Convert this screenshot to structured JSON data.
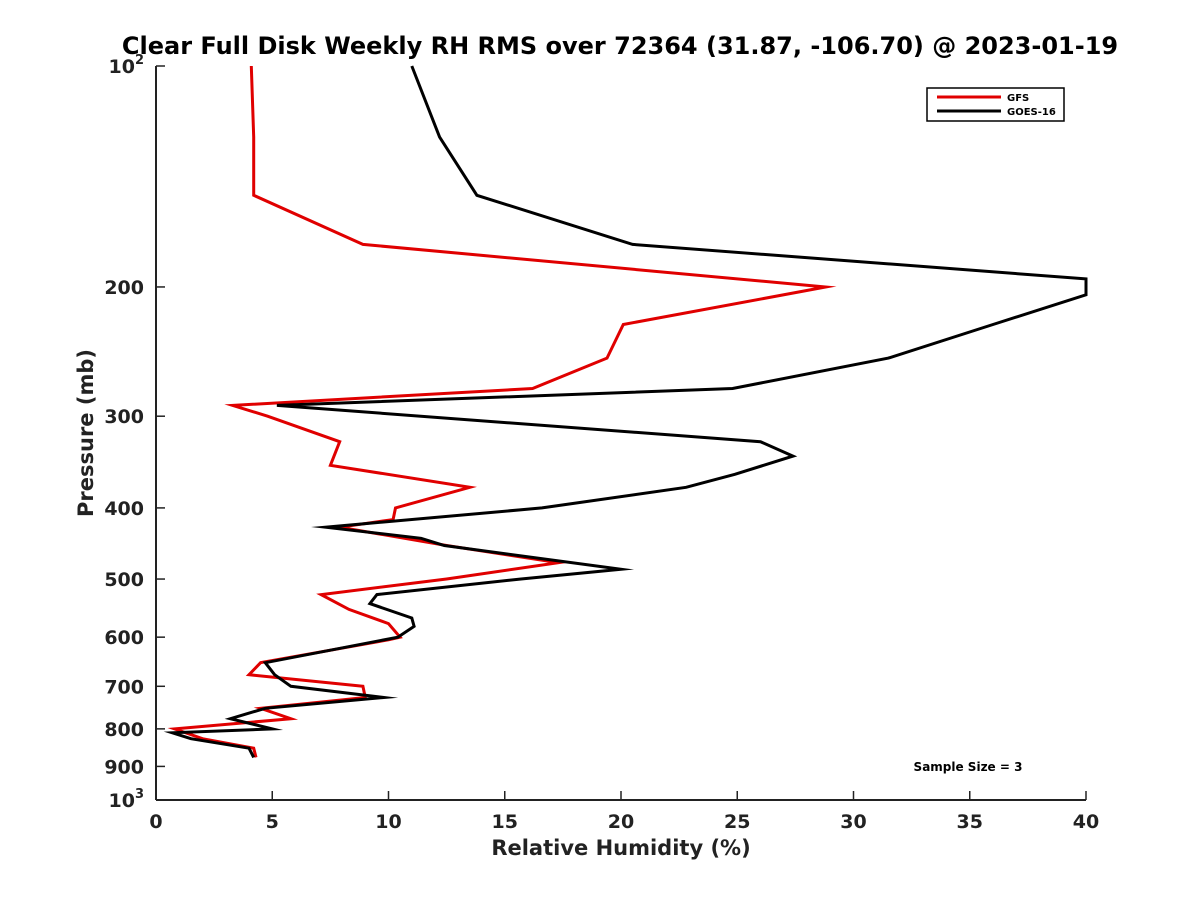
{
  "chart_data": {
    "type": "line",
    "title": "Clear Full Disk Weekly RH RMS over 72364 (31.87, -106.70) @ 2023-01-19",
    "xlabel": "Relative Humidity (%)",
    "ylabel": "Pressure (mb)",
    "xlim": [
      0,
      40
    ],
    "ylim": [
      100,
      1000
    ],
    "y_scale": "log",
    "y_reversed": true,
    "grid": false,
    "legend_position": "top-right",
    "x_ticks": [
      "0",
      "5",
      "10",
      "15",
      "20",
      "25",
      "30",
      "35",
      "40"
    ],
    "y_ticks": [
      {
        "value": 100,
        "label": "10",
        "sup": "2"
      },
      {
        "value": 200,
        "label": "200",
        "sup": ""
      },
      {
        "value": 300,
        "label": "300",
        "sup": ""
      },
      {
        "value": 400,
        "label": "400",
        "sup": ""
      },
      {
        "value": 500,
        "label": "500",
        "sup": ""
      },
      {
        "value": 600,
        "label": "600",
        "sup": ""
      },
      {
        "value": 700,
        "label": "700",
        "sup": ""
      },
      {
        "value": 800,
        "label": "800",
        "sup": ""
      },
      {
        "value": 900,
        "label": "900",
        "sup": ""
      },
      {
        "value": 1000,
        "label": "10",
        "sup": "3"
      }
    ],
    "annotation": "Sample Size = 3",
    "series": [
      {
        "name": "GFS",
        "color": "#e00000",
        "points": [
          [
            4.1,
            100
          ],
          [
            4.2,
            125
          ],
          [
            4.2,
            150
          ],
          [
            8.9,
            175
          ],
          [
            28.8,
            200
          ],
          [
            20.1,
            225
          ],
          [
            19.4,
            250
          ],
          [
            16.2,
            275
          ],
          [
            3.3,
            290
          ],
          [
            4.8,
            300
          ],
          [
            7.9,
            325
          ],
          [
            7.5,
            350
          ],
          [
            13.5,
            375
          ],
          [
            10.3,
            400
          ],
          [
            10.2,
            415
          ],
          [
            7.9,
            425
          ],
          [
            12.5,
            450
          ],
          [
            17.3,
            475
          ],
          [
            12.5,
            500
          ],
          [
            7.1,
            525
          ],
          [
            8.3,
            550
          ],
          [
            10.0,
            575
          ],
          [
            10.5,
            600
          ],
          [
            10.0,
            605
          ],
          [
            4.5,
            650
          ],
          [
            4.0,
            675
          ],
          [
            8.9,
            700
          ],
          [
            9.0,
            725
          ],
          [
            4.5,
            750
          ],
          [
            5.8,
            775
          ],
          [
            0.8,
            800
          ],
          [
            2.0,
            825
          ],
          [
            4.2,
            850
          ],
          [
            4.3,
            875
          ]
        ]
      },
      {
        "name": "GOES-16",
        "color": "#000000",
        "points": [
          [
            11.0,
            100
          ],
          [
            12.2,
            125
          ],
          [
            13.8,
            150
          ],
          [
            20.5,
            175
          ],
          [
            40.0,
            195
          ],
          [
            40.0,
            205
          ],
          [
            36.0,
            225
          ],
          [
            31.5,
            250
          ],
          [
            24.8,
            275
          ],
          [
            5.2,
            290
          ],
          [
            26.0,
            325
          ],
          [
            27.4,
            340
          ],
          [
            24.9,
            360
          ],
          [
            22.8,
            375
          ],
          [
            16.6,
            400
          ],
          [
            7.3,
            425
          ],
          [
            11.4,
            440
          ],
          [
            12.4,
            450
          ],
          [
            20.0,
            485
          ],
          [
            15.7,
            500
          ],
          [
            9.5,
            525
          ],
          [
            9.2,
            540
          ],
          [
            11.0,
            565
          ],
          [
            11.1,
            580
          ],
          [
            10.4,
            600
          ],
          [
            4.7,
            650
          ],
          [
            5.1,
            675
          ],
          [
            5.8,
            700
          ],
          [
            9.8,
            725
          ],
          [
            4.7,
            750
          ],
          [
            3.2,
            775
          ],
          [
            5.0,
            800
          ],
          [
            0.7,
            810
          ],
          [
            1.5,
            825
          ],
          [
            4.0,
            850
          ],
          [
            4.2,
            875
          ]
        ]
      }
    ]
  }
}
